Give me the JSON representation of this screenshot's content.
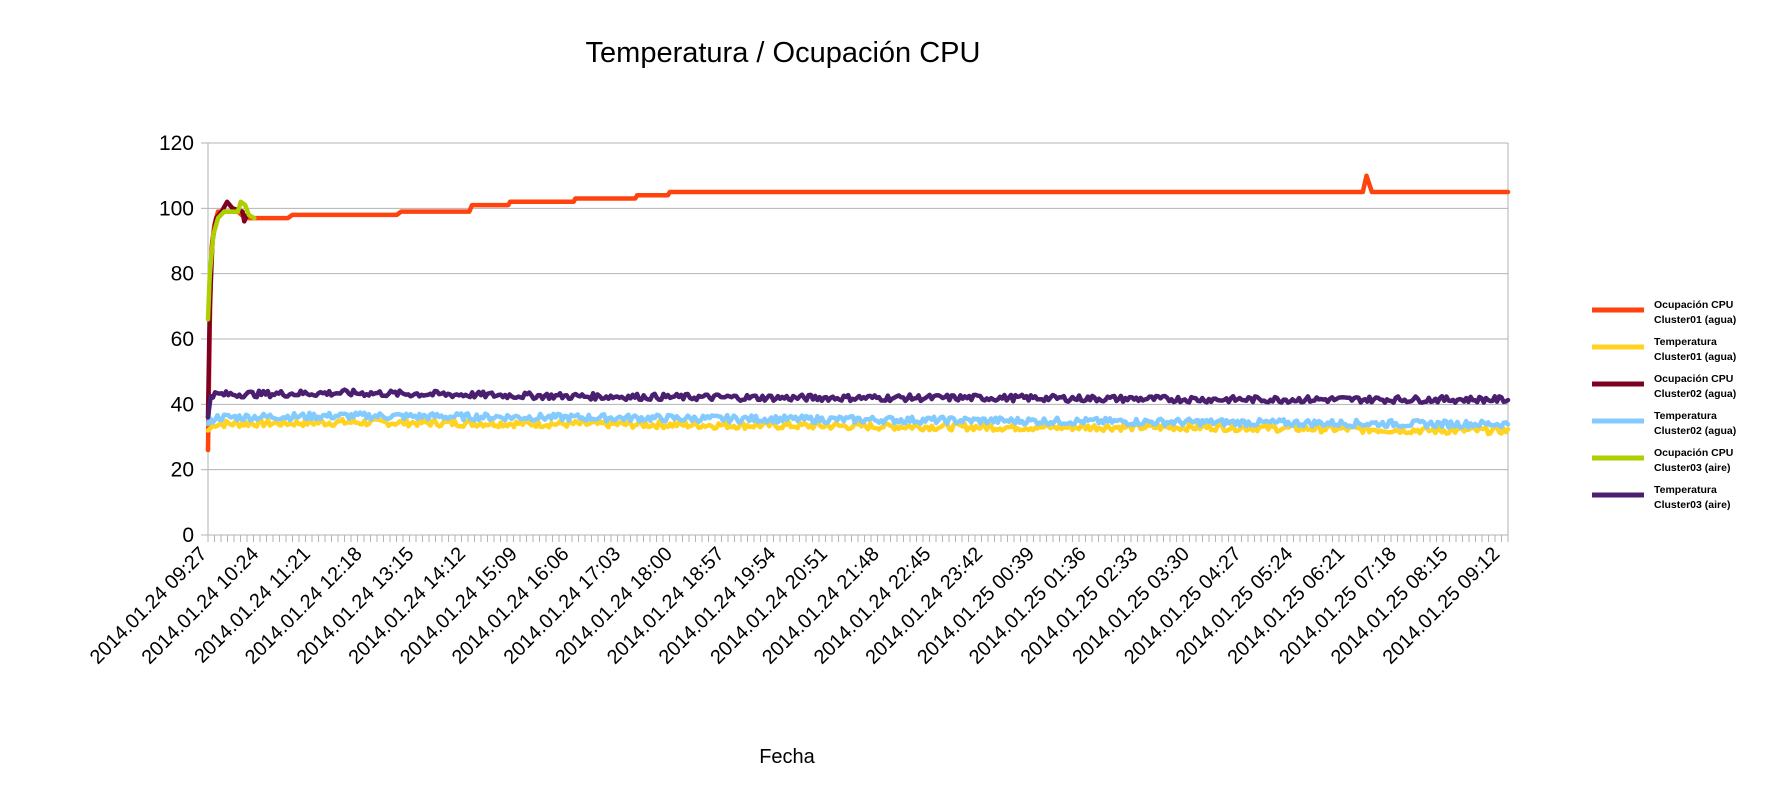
{
  "chart_data": {
    "type": "line",
    "title": "Temperatura / Ocupación CPU",
    "xlabel": "Fecha",
    "ylabel": "",
    "ylim": [
      0,
      120
    ],
    "yticks": [
      0,
      20,
      40,
      60,
      80,
      100,
      120
    ],
    "grid": true,
    "legend_position": "right",
    "x_tick_labels": [
      "2014.01.24 09:27",
      "2014.01.24 10:24",
      "2014.01.24 11:21",
      "2014.01.24 12:18",
      "2014.01.24 13:15",
      "2014.01.24 14:12",
      "2014.01.24 15:09",
      "2014.01.24 16:06",
      "2014.01.24 17:03",
      "2014.01.24 18:00",
      "2014.01.24 18:57",
      "2014.01.24 19:54",
      "2014.01.24 20:51",
      "2014.01.24 21:48",
      "2014.01.24 22:45",
      "2014.01.24 23:42",
      "2014.01.25 00:39",
      "2014.01.25 01:36",
      "2014.01.25 02:33",
      "2014.01.25 03:30",
      "2014.01.25 04:27",
      "2014.01.25 05:24",
      "2014.01.25 06:21",
      "2014.01.25 07:18",
      "2014.01.25 08:15",
      "2014.01.25 09:12"
    ],
    "x_range": [
      "2014.01.24 09:27",
      "2014.01.25 09:20"
    ],
    "series": [
      {
        "name": "Ocupación CPU Cluster01 (agua)",
        "color": "#ff420e",
        "points": [
          [
            "2014.01.24 09:27",
            26
          ],
          [
            "2014.01.24 09:29",
            65
          ],
          [
            "2014.01.24 09:31",
            88
          ],
          [
            "2014.01.24 09:34",
            95
          ],
          [
            "2014.01.24 09:38",
            99
          ],
          [
            "2014.01.24 10:00",
            99
          ],
          [
            "2014.01.24 10:08",
            97
          ],
          [
            "2014.01.24 10:55",
            97
          ],
          [
            "2014.01.24 11:00",
            98
          ],
          [
            "2014.01.24 12:55",
            98
          ],
          [
            "2014.01.24 13:00",
            99
          ],
          [
            "2014.01.24 14:15",
            99
          ],
          [
            "2014.01.24 14:18",
            101
          ],
          [
            "2014.01.24 14:58",
            101
          ],
          [
            "2014.01.24 15:00",
            102
          ],
          [
            "2014.01.24 16:10",
            102
          ],
          [
            "2014.01.24 16:12",
            103
          ],
          [
            "2014.01.24 17:18",
            103
          ],
          [
            "2014.01.24 17:20",
            104
          ],
          [
            "2014.01.24 17:54",
            104
          ],
          [
            "2014.01.24 17:56",
            105
          ],
          [
            "2014.01.25 06:40",
            105
          ],
          [
            "2014.01.25 06:44",
            110
          ],
          [
            "2014.01.25 06:50",
            105
          ],
          [
            "2014.01.25 09:20",
            105
          ]
        ]
      },
      {
        "name": "Temperatura Cluster01 (agua)",
        "color": "#ffd320",
        "points": [
          [
            "2014.01.24 09:27",
            32
          ],
          [
            "2014.01.24 09:35",
            34
          ],
          [
            "2014.01.24 12:00",
            34.5
          ],
          [
            "2014.01.24 16:00",
            34
          ],
          [
            "2014.01.24 20:00",
            33.5
          ],
          [
            "2014.01.25 00:00",
            33
          ],
          [
            "2014.01.25 04:00",
            33
          ],
          [
            "2014.01.25 08:00",
            32
          ],
          [
            "2014.01.25 09:20",
            32
          ]
        ]
      },
      {
        "name": "Ocupación CPU Cluster02 (agua)",
        "color": "#7e0021",
        "points": [
          [
            "2014.01.24 09:27",
            36
          ],
          [
            "2014.01.24 09:29",
            70
          ],
          [
            "2014.01.24 09:32",
            90
          ],
          [
            "2014.01.24 09:36",
            97
          ],
          [
            "2014.01.24 09:42",
            99
          ],
          [
            "2014.01.24 09:48",
            102
          ],
          [
            "2014.01.24 09:54",
            100
          ],
          [
            "2014.01.24 10:05",
            99
          ],
          [
            "2014.01.24 10:07",
            96
          ],
          [
            "2014.01.24 10:10",
            98
          ]
        ]
      },
      {
        "name": "Temperatura Cluster02 (agua)",
        "color": "#83caff",
        "points": [
          [
            "2014.01.24 09:27",
            34
          ],
          [
            "2014.01.24 09:35",
            36
          ],
          [
            "2014.01.24 12:00",
            36.5
          ],
          [
            "2014.01.24 16:00",
            36
          ],
          [
            "2014.01.24 20:00",
            35.5
          ],
          [
            "2014.01.25 00:00",
            35
          ],
          [
            "2014.01.25 04:00",
            34.5
          ],
          [
            "2014.01.25 08:00",
            34
          ],
          [
            "2014.01.25 09:20",
            34
          ]
        ]
      },
      {
        "name": "Ocupación CPU Cluster03 (aire)",
        "color": "#aecf00",
        "points": [
          [
            "2014.01.24 09:27",
            66
          ],
          [
            "2014.01.24 09:29",
            80
          ],
          [
            "2014.01.24 09:33",
            92
          ],
          [
            "2014.01.24 09:38",
            97
          ],
          [
            "2014.01.24 09:45",
            99
          ],
          [
            "2014.01.24 10:00",
            99
          ],
          [
            "2014.01.24 10:03",
            102
          ],
          [
            "2014.01.24 10:08",
            101
          ],
          [
            "2014.01.24 10:12",
            98
          ],
          [
            "2014.01.24 10:18",
            97
          ]
        ]
      },
      {
        "name": "Temperatura Cluster03 (aire)",
        "color": "#4b1f6f",
        "points": [
          [
            "2014.01.24 09:27",
            36
          ],
          [
            "2014.01.24 09:30",
            43
          ],
          [
            "2014.01.24 12:00",
            43.5
          ],
          [
            "2014.01.24 16:00",
            42.5
          ],
          [
            "2014.01.24 20:00",
            42
          ],
          [
            "2014.01.25 00:00",
            42
          ],
          [
            "2014.01.25 04:00",
            41.5
          ],
          [
            "2014.01.25 08:00",
            41.5
          ],
          [
            "2014.01.25 09:20",
            41.5
          ]
        ]
      }
    ],
    "legend": [
      [
        "Ocupación CPU",
        "Cluster01 (agua)"
      ],
      [
        "Temperatura",
        "Cluster01 (agua)"
      ],
      [
        "Ocupación CPU",
        "Cluster02 (agua)"
      ],
      [
        "Temperatura",
        "Cluster02 (agua)"
      ],
      [
        "Ocupación CPU",
        "Cluster03 (aire)"
      ],
      [
        "Temperatura",
        "Cluster03 (aire)"
      ]
    ]
  }
}
